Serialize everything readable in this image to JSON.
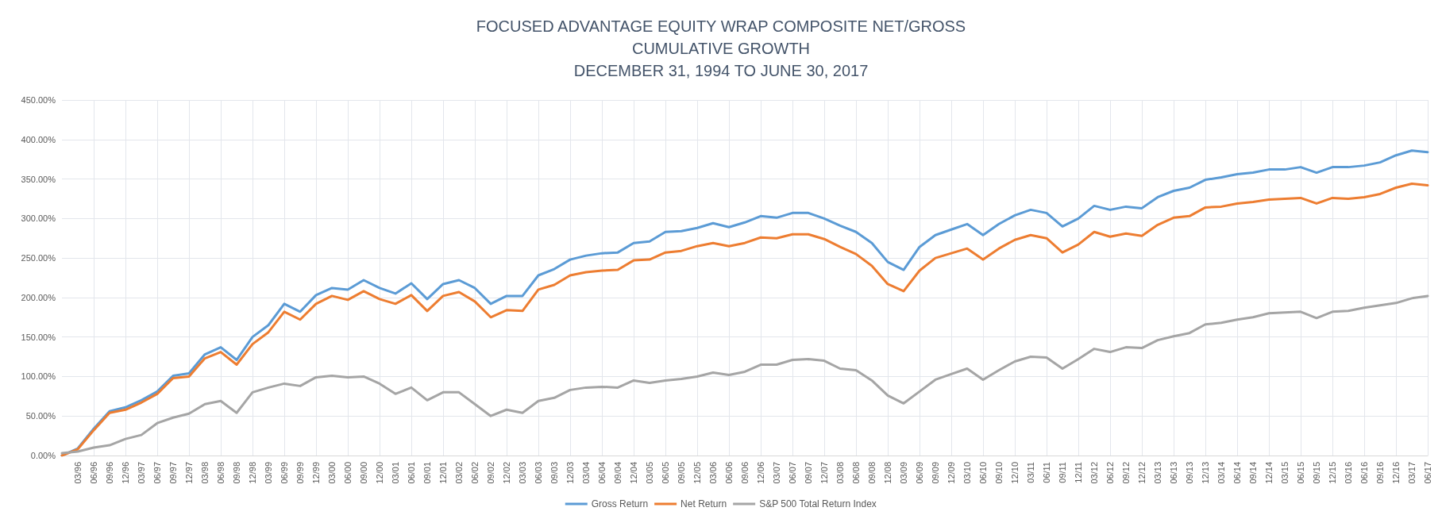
{
  "chart_data": {
    "type": "line",
    "title": "FOCUSED ADVANTAGE EQUITY WRAP COMPOSITE NET/GROSS\nCUMULATIVE GROWTH\nDECEMBER 31, 1994 TO JUNE 30, 2017",
    "categories": [
      null,
      "03/96",
      "06/96",
      "09/96",
      "12/96",
      "03/97",
      "06/97",
      "09/97",
      "12/97",
      "03/98",
      "06/98",
      "09/98",
      "12/98",
      "03/99",
      "06/99",
      "09/99",
      "12/99",
      "03/00",
      "06/00",
      "09/00",
      "12/00",
      "03/01",
      "06/01",
      "09/01",
      "12/01",
      "03/02",
      "06/02",
      "09/02",
      "12/02",
      "03/03",
      "06/03",
      "09/03",
      "12/03",
      "03/04",
      "06/04",
      "09/04",
      "12/04",
      "03/05",
      "06/05",
      "09/05",
      "12/05",
      "03/06",
      "06/06",
      "09/06",
      "12/06",
      "03/07",
      "06/07",
      "09/07",
      "12/07",
      "03/08",
      "06/08",
      "09/08",
      "12/08",
      "03/09",
      "06/09",
      "09/09",
      "12/09",
      "03/10",
      "06/10",
      "09/10",
      "12/10",
      "03/11",
      "06/11",
      "09/11",
      "12/11",
      "03/12",
      "06/12",
      "09/12",
      "12/12",
      "03/13",
      "06/13",
      "09/13",
      "12/13",
      "03/14",
      "06/14",
      "09/14",
      "12/14",
      "03/15",
      "06/15",
      "09/15",
      "12/15",
      "03/16",
      "06/16",
      "09/16",
      "12/16",
      "03/17",
      "06/17"
    ],
    "series": [
      {
        "name": "Gross Return",
        "color": "#5b9bd5",
        "values": [
          0,
          9,
          34,
          56,
          61,
          70,
          81,
          101,
          104,
          128,
          137,
          121,
          150,
          165,
          192,
          182,
          203,
          212,
          210,
          222,
          212,
          205,
          218,
          198,
          217,
          222,
          212,
          192,
          202,
          202,
          228,
          236,
          248,
          253,
          256,
          257,
          269,
          271,
          283,
          284,
          288,
          294,
          289,
          295,
          303,
          301,
          307,
          307,
          300,
          291,
          283,
          269,
          245,
          235,
          264,
          279,
          286,
          293,
          279,
          293,
          304,
          311,
          307,
          290,
          300,
          316,
          311,
          315,
          313,
          327,
          335,
          339,
          349,
          352,
          356,
          358,
          362,
          362,
          365,
          358,
          365,
          365,
          367,
          371,
          380,
          386,
          384
        ]
      },
      {
        "name": "Net Return",
        "color": "#ed7d31",
        "values": [
          0,
          8,
          32,
          54,
          58,
          67,
          78,
          98,
          100,
          123,
          131,
          115,
          141,
          156,
          182,
          172,
          192,
          202,
          197,
          208,
          198,
          192,
          203,
          183,
          202,
          207,
          195,
          175,
          184,
          183,
          210,
          216,
          228,
          232,
          234,
          235,
          247,
          248,
          257,
          259,
          265,
          269,
          265,
          269,
          276,
          275,
          280,
          280,
          274,
          264,
          255,
          240,
          217,
          208,
          234,
          250,
          256,
          262,
          248,
          262,
          273,
          279,
          275,
          257,
          267,
          283,
          277,
          281,
          278,
          292,
          301,
          303,
          314,
          315,
          319,
          321,
          324,
          325,
          326,
          319,
          326,
          325,
          327,
          331,
          339,
          344,
          342
        ]
      },
      {
        "name": "S&P 500 Total Return Index",
        "color": "#a5a5a5",
        "values": [
          3,
          5,
          10,
          13,
          21,
          26,
          41,
          48,
          53,
          65,
          69,
          54,
          80,
          86,
          91,
          88,
          99,
          101,
          99,
          100,
          91,
          78,
          86,
          70,
          80,
          80,
          65,
          50,
          58,
          54,
          69,
          73,
          83,
          86,
          87,
          86,
          95,
          92,
          95,
          97,
          100,
          105,
          102,
          106,
          115,
          115,
          121,
          122,
          120,
          110,
          108,
          95,
          76,
          66,
          81,
          96,
          103,
          110,
          96,
          108,
          119,
          125,
          124,
          110,
          122,
          135,
          131,
          137,
          136,
          146,
          151,
          155,
          166,
          168,
          172,
          175,
          180,
          181,
          182,
          174,
          182,
          183,
          187,
          190,
          193,
          199,
          202
        ]
      }
    ],
    "ylim": [
      0,
      450
    ],
    "yticks": [
      {
        "value": 0,
        "label": "0.00%"
      },
      {
        "value": 50,
        "label": "50.00%"
      },
      {
        "value": 100,
        "label": "100.00%"
      },
      {
        "value": 150,
        "label": "150.00%"
      },
      {
        "value": 200,
        "label": "200.00%"
      },
      {
        "value": 250,
        "label": "250.00%"
      },
      {
        "value": 300,
        "label": "300.00%"
      },
      {
        "value": 350,
        "label": "350.00%"
      },
      {
        "value": 400,
        "label": "400.00%"
      },
      {
        "value": 450,
        "label": "450.00%"
      }
    ],
    "grid": true,
    "legend": "bottom",
    "marker": "none",
    "line_style": "solid"
  }
}
